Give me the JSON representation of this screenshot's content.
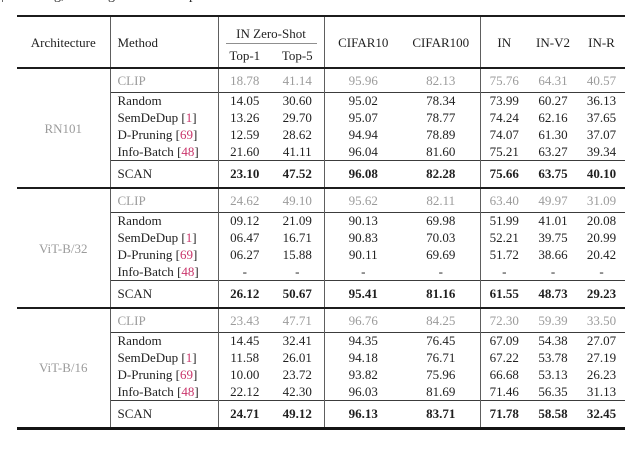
{
  "caption_marks": [
    "|",
    "g,",
    "g",
    "p"
  ],
  "colors": {
    "citation": "#c9356b",
    "muted_row": "#9b9b9b",
    "text": "#1f1f1f"
  },
  "table": {
    "headers": {
      "architecture": "Architecture",
      "method": "Method",
      "in_zero_shot": "IN Zero-Shot",
      "top1": "Top-1",
      "top5": "Top-5",
      "cifar10": "CIFAR10",
      "cifar100": "CIFAR100",
      "in": "IN",
      "in_v2": "IN-V2",
      "in_r": "IN-R"
    },
    "groups": [
      {
        "architecture": "RN101",
        "clip_row": {
          "method": "CLIP",
          "values": [
            "18.78",
            "41.14",
            "95.96",
            "82.13",
            "75.76",
            "64.31",
            "40.57"
          ]
        },
        "baseline_rows": [
          {
            "method": "Random",
            "citation": "",
            "values": [
              "14.05",
              "30.60",
              "95.02",
              "78.34",
              "73.99",
              "60.27",
              "36.13"
            ]
          },
          {
            "method": "SemDeDup",
            "citation": "1",
            "values": [
              "13.26",
              "29.70",
              "95.07",
              "78.77",
              "74.24",
              "62.16",
              "37.65"
            ]
          },
          {
            "method": "D-Pruning",
            "citation": "69",
            "values": [
              "12.59",
              "28.62",
              "94.94",
              "78.89",
              "74.07",
              "61.30",
              "37.07"
            ]
          },
          {
            "method": "Info-Batch",
            "citation": "48",
            "values": [
              "21.60",
              "41.11",
              "96.04",
              "81.60",
              "75.21",
              "63.27",
              "39.34"
            ]
          }
        ],
        "scan_row": {
          "method": "SCAN",
          "values": [
            "23.10",
            "47.52",
            "96.08",
            "82.28",
            "75.66",
            "63.75",
            "40.10"
          ]
        }
      },
      {
        "architecture": "ViT-B/32",
        "clip_row": {
          "method": "CLIP",
          "values": [
            "24.62",
            "49.10",
            "95.62",
            "82.11",
            "63.40",
            "49.97",
            "31.09"
          ]
        },
        "baseline_rows": [
          {
            "method": "Random",
            "citation": "",
            "values": [
              "09.12",
              "21.09",
              "90.13",
              "69.98",
              "51.99",
              "41.01",
              "20.08"
            ]
          },
          {
            "method": "SemDeDup",
            "citation": "1",
            "values": [
              "06.47",
              "16.71",
              "90.83",
              "70.03",
              "52.21",
              "39.75",
              "20.99"
            ]
          },
          {
            "method": "D-Pruning",
            "citation": "69",
            "values": [
              "06.27",
              "15.88",
              "90.11",
              "69.69",
              "51.72",
              "38.66",
              "20.42"
            ]
          },
          {
            "method": "Info-Batch",
            "citation": "48",
            "values": [
              "-",
              "-",
              "-",
              "-",
              "-",
              "-",
              "-"
            ]
          }
        ],
        "scan_row": {
          "method": "SCAN",
          "values": [
            "26.12",
            "50.67",
            "95.41",
            "81.16",
            "61.55",
            "48.73",
            "29.23"
          ]
        }
      },
      {
        "architecture": "ViT-B/16",
        "clip_row": {
          "method": "CLIP",
          "values": [
            "23.43",
            "47.71",
            "96.76",
            "84.25",
            "72.30",
            "59.39",
            "33.50"
          ]
        },
        "baseline_rows": [
          {
            "method": "Random",
            "citation": "",
            "values": [
              "14.45",
              "32.41",
              "94.35",
              "76.45",
              "67.09",
              "54.38",
              "27.07"
            ]
          },
          {
            "method": "SemDeDup",
            "citation": "1",
            "values": [
              "11.58",
              "26.01",
              "94.18",
              "76.71",
              "67.22",
              "53.78",
              "27.19"
            ]
          },
          {
            "method": "D-Pruning",
            "citation": "69",
            "values": [
              "10.00",
              "23.72",
              "93.82",
              "75.96",
              "66.68",
              "53.13",
              "26.23"
            ]
          },
          {
            "method": "Info-Batch",
            "citation": "48",
            "values": [
              "22.12",
              "42.30",
              "96.03",
              "81.69",
              "71.46",
              "56.35",
              "31.13"
            ]
          }
        ],
        "scan_row": {
          "method": "SCAN",
          "values": [
            "24.71",
            "49.12",
            "96.13",
            "83.71",
            "71.78",
            "58.58",
            "32.45"
          ]
        }
      }
    ]
  }
}
